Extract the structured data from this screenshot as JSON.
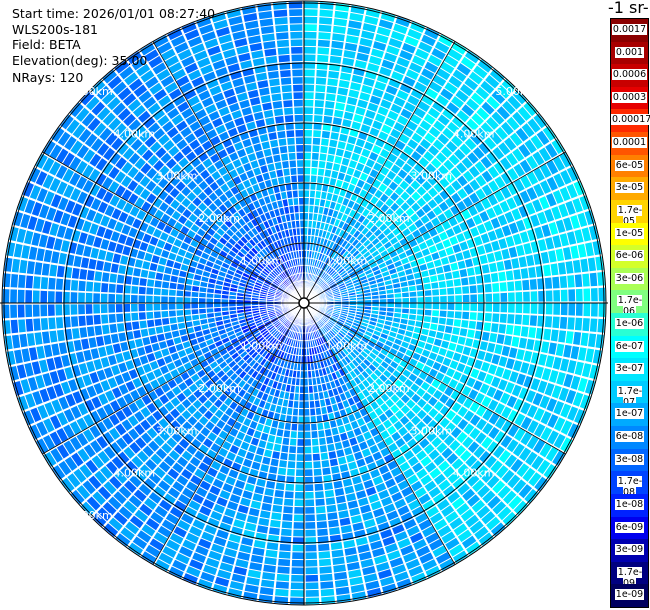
{
  "info": {
    "start_time": "Start time: 2026/01/01 08:27:40",
    "instrument": "WLS200s-181",
    "field": "Field: BETA",
    "elevation": "Elevation(deg): 35.00",
    "nrays": "NRays: 120"
  },
  "colorbar": {
    "title": "-1 sr-",
    "levels": [
      {
        "label": "0.0017",
        "color": "#8b0000"
      },
      {
        "label": "0.001",
        "color": "#a80000"
      },
      {
        "label": "0.0006",
        "color": "#c80000"
      },
      {
        "label": "0.0003",
        "color": "#e60000"
      },
      {
        "label": "0.00017",
        "color": "#ff2a00"
      },
      {
        "label": "0.0001",
        "color": "#ff5500"
      },
      {
        "label": "6e-05",
        "color": "#ff8000"
      },
      {
        "label": "3e-05",
        "color": "#ffaa00"
      },
      {
        "label": "1.7e-05",
        "color": "#ffd400"
      },
      {
        "label": "1e-05",
        "color": "#ffff00"
      },
      {
        "label": "6e-06",
        "color": "#d4ff2a"
      },
      {
        "label": "3e-06",
        "color": "#aaff55"
      },
      {
        "label": "1.7e-06",
        "color": "#80ff80"
      },
      {
        "label": "1e-06",
        "color": "#2affd4"
      },
      {
        "label": "6e-07",
        "color": "#00ffff"
      },
      {
        "label": "3e-07",
        "color": "#00e6ff"
      },
      {
        "label": "1.7e-07",
        "color": "#00ccff"
      },
      {
        "label": "1e-07",
        "color": "#00aaff"
      },
      {
        "label": "6e-08",
        "color": "#0088ff"
      },
      {
        "label": "3e-08",
        "color": "#0066ff"
      },
      {
        "label": "1.7e-08",
        "color": "#0044ff"
      },
      {
        "label": "1e-08",
        "color": "#0022ff"
      },
      {
        "label": "6e-09",
        "color": "#0000ee"
      },
      {
        "label": "3e-09",
        "color": "#0000b0"
      },
      {
        "label": "1.7e-09",
        "color": "#000080"
      },
      {
        "label": "1e-09",
        "color": "#000060"
      }
    ]
  },
  "ring_labels": [
    "1.00km",
    "2.00km",
    "3.00km",
    "4.00km",
    "5.00km"
  ],
  "colors": {
    "grid": "#000000",
    "ray_gap": "#ffffff",
    "ring_text": "#ffffff"
  }
}
